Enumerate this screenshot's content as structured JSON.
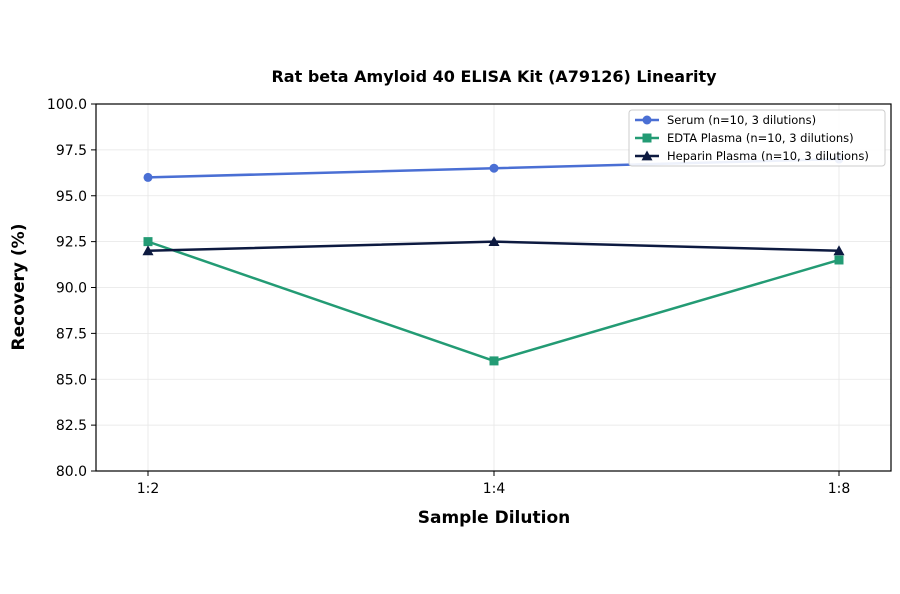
{
  "chart_data": {
    "type": "line",
    "title": "Rat beta Amyloid 40 ELISA Kit (A79126) Linearity",
    "xlabel": "Sample Dilution",
    "ylabel": "Recovery (%)",
    "categories": [
      "1:2",
      "1:4",
      "1:8"
    ],
    "ylim": [
      80.0,
      100.0
    ],
    "yticks": [
      "80.0",
      "82.5",
      "85.0",
      "87.5",
      "90.0",
      "92.5",
      "95.0",
      "97.5",
      "100.0"
    ],
    "grid": true,
    "legend_position": "top-right",
    "series": [
      {
        "name": "Serum (n=10, 3 dilutions)",
        "values": [
          96.0,
          96.5,
          97.0
        ],
        "color": "#4a6fd4",
        "marker": "circle"
      },
      {
        "name": "EDTA Plasma (n=10, 3 dilutions)",
        "values": [
          92.5,
          86.0,
          91.5
        ],
        "color": "#239b74",
        "marker": "square"
      },
      {
        "name": "Heparin Plasma (n=10, 3 dilutions)",
        "values": [
          92.0,
          92.5,
          92.0
        ],
        "color": "#0d1a40",
        "marker": "triangle"
      }
    ]
  }
}
